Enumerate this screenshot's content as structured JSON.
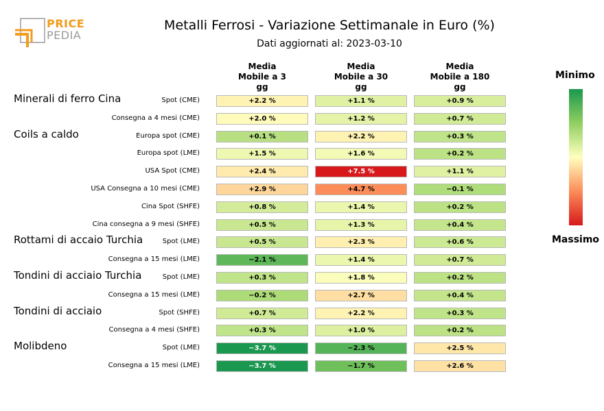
{
  "logo": {
    "line1": "PRICE",
    "line2": "PEDIA"
  },
  "title": "Metalli Ferrosi - Variazione Settimanale in Euro (%)",
  "subtitle": "Dati aggiornati al: 2023-03-10",
  "columns": [
    {
      "line1": "Media",
      "line2": "Mobile a 3",
      "line3": "gg"
    },
    {
      "line1": "Media",
      "line2": "Mobile a 30",
      "line3": "gg"
    },
    {
      "line1": "Media",
      "line2": "Mobile a 180",
      "line3": "gg"
    }
  ],
  "scale": {
    "min_label": "Minimo",
    "max_label": "Massimo"
  },
  "colors": {
    "min": "#1a9850",
    "mid": "#ffffbf",
    "max": "#d7191c"
  },
  "chart_data": {
    "type": "table",
    "title": "Metalli Ferrosi - Variazione Settimanale in Euro (%)",
    "groups": [
      {
        "name": "Minerali di ferro Cina",
        "rows": [
          {
            "label": "Spot (CME)",
            "values": [
              "+2.2 %",
              "+1.1 %",
              "+0.9 %"
            ]
          },
          {
            "label": "Consegna a 4 mesi (CME)",
            "values": [
              "+2.0 %",
              "+1.2 %",
              "+0.7 %"
            ]
          }
        ]
      },
      {
        "name": "Coils a caldo",
        "rows": [
          {
            "label": "Europa spot (CME)",
            "values": [
              "+0.1 %",
              "+2.2 %",
              "+0.3 %"
            ]
          },
          {
            "label": "Europa spot (LME)",
            "values": [
              "+1.5 %",
              "+1.6 %",
              "+0.2 %"
            ]
          },
          {
            "label": "USA Spot (CME)",
            "values": [
              "+2.4 %",
              "+7.5 %",
              "+1.1 %"
            ]
          },
          {
            "label": "USA Consegna a 10 mesi (CME)",
            "values": [
              "+2.9 %",
              "+4.7 %",
              "−0.1 %"
            ]
          },
          {
            "label": "Cina Spot (SHFE)",
            "values": [
              "+0.8 %",
              "+1.4 %",
              "+0.2 %"
            ]
          },
          {
            "label": "Cina consegna a 9 mesi (SHFE)",
            "values": [
              "+0.5 %",
              "+1.3 %",
              "+0.4 %"
            ]
          }
        ]
      },
      {
        "name": "Rottami di accaio Turchia",
        "rows": [
          {
            "label": "Spot (LME)",
            "values": [
              "+0.5 %",
              "+2.3 %",
              "+0.6 %"
            ]
          },
          {
            "label": "Consegna a 15 mesi (LME)",
            "values": [
              "−2.1 %",
              "+1.4 %",
              "+0.7 %"
            ]
          }
        ]
      },
      {
        "name": "Tondini di acciaio Turchia",
        "rows": [
          {
            "label": "Spot (LME)",
            "values": [
              "+0.3 %",
              "+1.8 %",
              "+0.2 %"
            ]
          },
          {
            "label": "Consegna a 15 mesi (LME)",
            "values": [
              "−0.2 %",
              "+2.7 %",
              "+0.4 %"
            ]
          }
        ]
      },
      {
        "name": "Tondini di acciaio",
        "rows": [
          {
            "label": "Spot (SHFE)",
            "values": [
              "+0.7 %",
              "+2.2 %",
              "+0.3 %"
            ]
          },
          {
            "label": "Consegna a 4 mesi (SHFE)",
            "values": [
              "+0.3 %",
              "+1.0 %",
              "+0.2 %"
            ]
          }
        ]
      },
      {
        "name": "Molibdeno",
        "rows": [
          {
            "label": "Spot (LME)",
            "values": [
              "−3.7 %",
              "−2.3 %",
              "+2.5 %"
            ]
          },
          {
            "label": "Consegna a 15 mesi (LME)",
            "values": [
              "−3.7 %",
              "−1.7 %",
              "+2.6 %"
            ]
          }
        ]
      }
    ]
  }
}
